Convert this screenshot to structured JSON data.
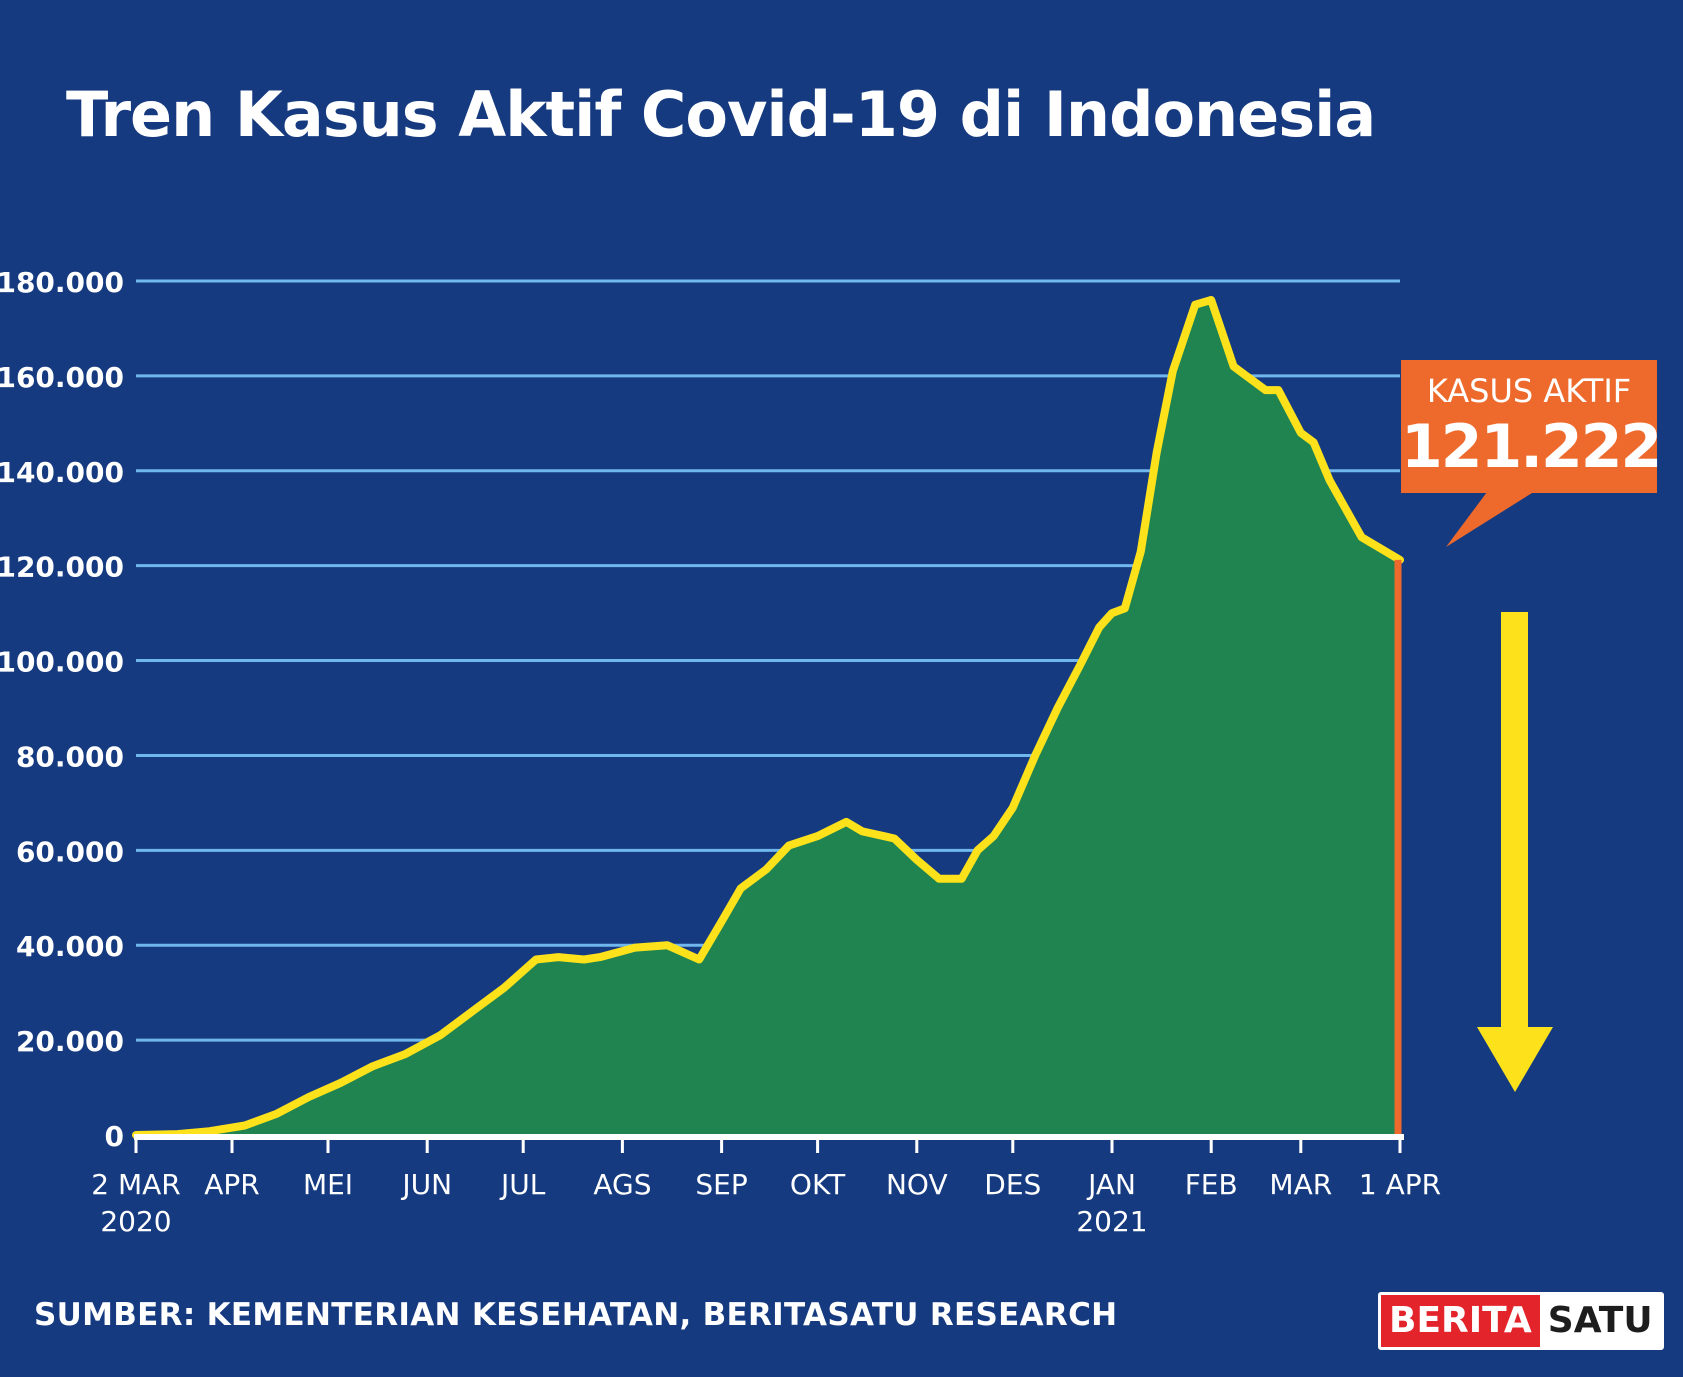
{
  "title": "Tren Kasus Aktif Covid-19 di Indonesia",
  "source": "SUMBER: KEMENTERIAN KESEHATAN, BERITASATU RESEARCH",
  "logo": {
    "part1": "BERITA",
    "part2": "SATU"
  },
  "callout": {
    "label": "KASUS AKTIF",
    "value": "121.222"
  },
  "colors": {
    "background": "#153a80",
    "gridline": "#6fb7ec",
    "area_fill": "#1f8450",
    "line": "#fde21b",
    "highlight": "#ee6a2c",
    "arrow": "#fde21b"
  },
  "chart_data": {
    "type": "area",
    "title": "Tren Kasus Aktif Covid-19 di Indonesia",
    "xlabel": "",
    "ylabel": "",
    "ylim": [
      0,
      180000
    ],
    "y_ticks": [
      0,
      20000,
      40000,
      60000,
      80000,
      100000,
      120000,
      140000,
      160000,
      180000
    ],
    "y_tick_labels": [
      "0",
      "20.000",
      "40.000",
      "60.000",
      "80.000",
      "100.000",
      "120.000",
      "140.000",
      "160.000",
      "180.000"
    ],
    "x_ticks": [
      {
        "date": "2020-03-02",
        "label": "2 MAR",
        "sub": "2020"
      },
      {
        "date": "2020-04-01",
        "label": "APR",
        "sub": ""
      },
      {
        "date": "2020-05-01",
        "label": "MEI",
        "sub": ""
      },
      {
        "date": "2020-06-01",
        "label": "JUN",
        "sub": ""
      },
      {
        "date": "2020-07-01",
        "label": "JUL",
        "sub": ""
      },
      {
        "date": "2020-08-01",
        "label": "AGS",
        "sub": ""
      },
      {
        "date": "2020-09-01",
        "label": "SEP",
        "sub": ""
      },
      {
        "date": "2020-10-01",
        "label": "OKT",
        "sub": ""
      },
      {
        "date": "2020-11-01",
        "label": "NOV",
        "sub": ""
      },
      {
        "date": "2020-12-01",
        "label": "DES",
        "sub": ""
      },
      {
        "date": "2021-01-01",
        "label": "JAN",
        "sub": "2021"
      },
      {
        "date": "2021-02-01",
        "label": "FEB",
        "sub": ""
      },
      {
        "date": "2021-03-01",
        "label": "MAR",
        "sub": ""
      },
      {
        "date": "2021-04-01",
        "label": "1 APR",
        "sub": ""
      }
    ],
    "grid": true,
    "series": [
      {
        "x": [
          "2020-03-02",
          "2020-03-15",
          "2020-03-25",
          "2020-04-05",
          "2020-04-15",
          "2020-04-25",
          "2020-05-05",
          "2020-05-15",
          "2020-05-25",
          "2020-06-05",
          "2020-06-15",
          "2020-06-25",
          "2020-07-05",
          "2020-07-12",
          "2020-07-20",
          "2020-07-25",
          "2020-08-05",
          "2020-08-15",
          "2020-08-25",
          "2020-09-01",
          "2020-09-07",
          "2020-09-15",
          "2020-09-22",
          "2020-10-01",
          "2020-10-10",
          "2020-10-15",
          "2020-10-25",
          "2020-11-01",
          "2020-11-08",
          "2020-11-15",
          "2020-11-20",
          "2020-11-25",
          "2020-12-01",
          "2020-12-08",
          "2020-12-15",
          "2020-12-22",
          "2020-12-28",
          "2021-01-01",
          "2021-01-05",
          "2021-01-10",
          "2021-01-15",
          "2021-01-20",
          "2021-01-27",
          "2021-02-01",
          "2021-02-05",
          "2021-02-08",
          "2021-02-12",
          "2021-02-18",
          "2021-02-22",
          "2021-03-01",
          "2021-03-05",
          "2021-03-10",
          "2021-03-15",
          "2021-03-20",
          "2021-03-25",
          "2021-04-01"
        ],
        "values": [
          0,
          200,
          800,
          2000,
          4500,
          8000,
          11000,
          14500,
          17000,
          21000,
          26000,
          31000,
          37000,
          37500,
          37000,
          37500,
          39500,
          40000,
          37000,
          45000,
          52000,
          56000,
          61000,
          63000,
          66000,
          64000,
          62500,
          58000,
          54000,
          54000,
          60000,
          63000,
          69000,
          80000,
          90000,
          99000,
          107000,
          110000,
          111000,
          123000,
          144000,
          161000,
          175000,
          176000,
          168000,
          162000,
          160000,
          157000,
          157000,
          148000,
          146000,
          138000,
          132000,
          126000,
          124000,
          121222
        ]
      }
    ],
    "annotation": {
      "date": "2021-04-01",
      "label": "KASUS AKTIF",
      "value": 121222
    }
  }
}
